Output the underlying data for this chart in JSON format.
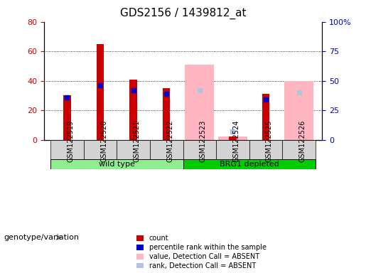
{
  "title": "GDS2156 / 1439812_at",
  "samples": [
    "GSM122519",
    "GSM122520",
    "GSM122521",
    "GSM122522",
    "GSM122523",
    "GSM122524",
    "GSM122525",
    "GSM122526"
  ],
  "count_values": [
    30,
    65,
    41,
    35,
    null,
    2,
    31,
    null
  ],
  "percentile_rank": [
    36,
    46,
    42,
    39,
    null,
    null,
    34,
    null
  ],
  "absent_value": [
    null,
    null,
    null,
    null,
    51,
    2,
    null,
    40
  ],
  "absent_rank": [
    null,
    null,
    null,
    null,
    42,
    7,
    null,
    40
  ],
  "groups": [
    {
      "label": "wild type",
      "samples": [
        0,
        1,
        2,
        3
      ],
      "color": "#90EE90"
    },
    {
      "label": "BRG1 depleted",
      "samples": [
        4,
        5,
        6,
        7
      ],
      "color": "#00CC00"
    }
  ],
  "ylim_left": [
    0,
    80
  ],
  "ylim_right": [
    0,
    100
  ],
  "yticks_left": [
    0,
    20,
    40,
    60,
    80
  ],
  "yticks_right": [
    0,
    25,
    50,
    75,
    100
  ],
  "ylabel_left_color": "#CC0000",
  "ylabel_right_color": "#0000CC",
  "bar_width": 0.4,
  "count_color": "#CC0000",
  "rank_color": "#0000CC",
  "absent_value_color": "#FFB6C1",
  "absent_rank_color": "#B0C4DE",
  "group_label_color": "#000000",
  "group_row_color": "#D3D3D3",
  "group_band_color": "#90EE90",
  "group_band_color2": "#00CC00"
}
